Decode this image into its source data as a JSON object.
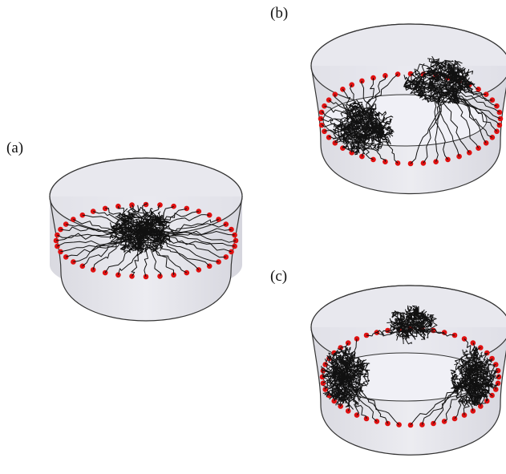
{
  "figure": {
    "panels": [
      {
        "id": "a",
        "label": "(a)",
        "clusters": 1
      },
      {
        "id": "b",
        "label": "(b)",
        "clusters": 2
      },
      {
        "id": "c",
        "label": "(c)",
        "clusters": 3
      }
    ]
  },
  "colors": {
    "anchor_dot": "#e01010",
    "polymer": "#111111",
    "cylinder_fill": "#e4e4ea",
    "cylinder_stroke": "#333333"
  }
}
